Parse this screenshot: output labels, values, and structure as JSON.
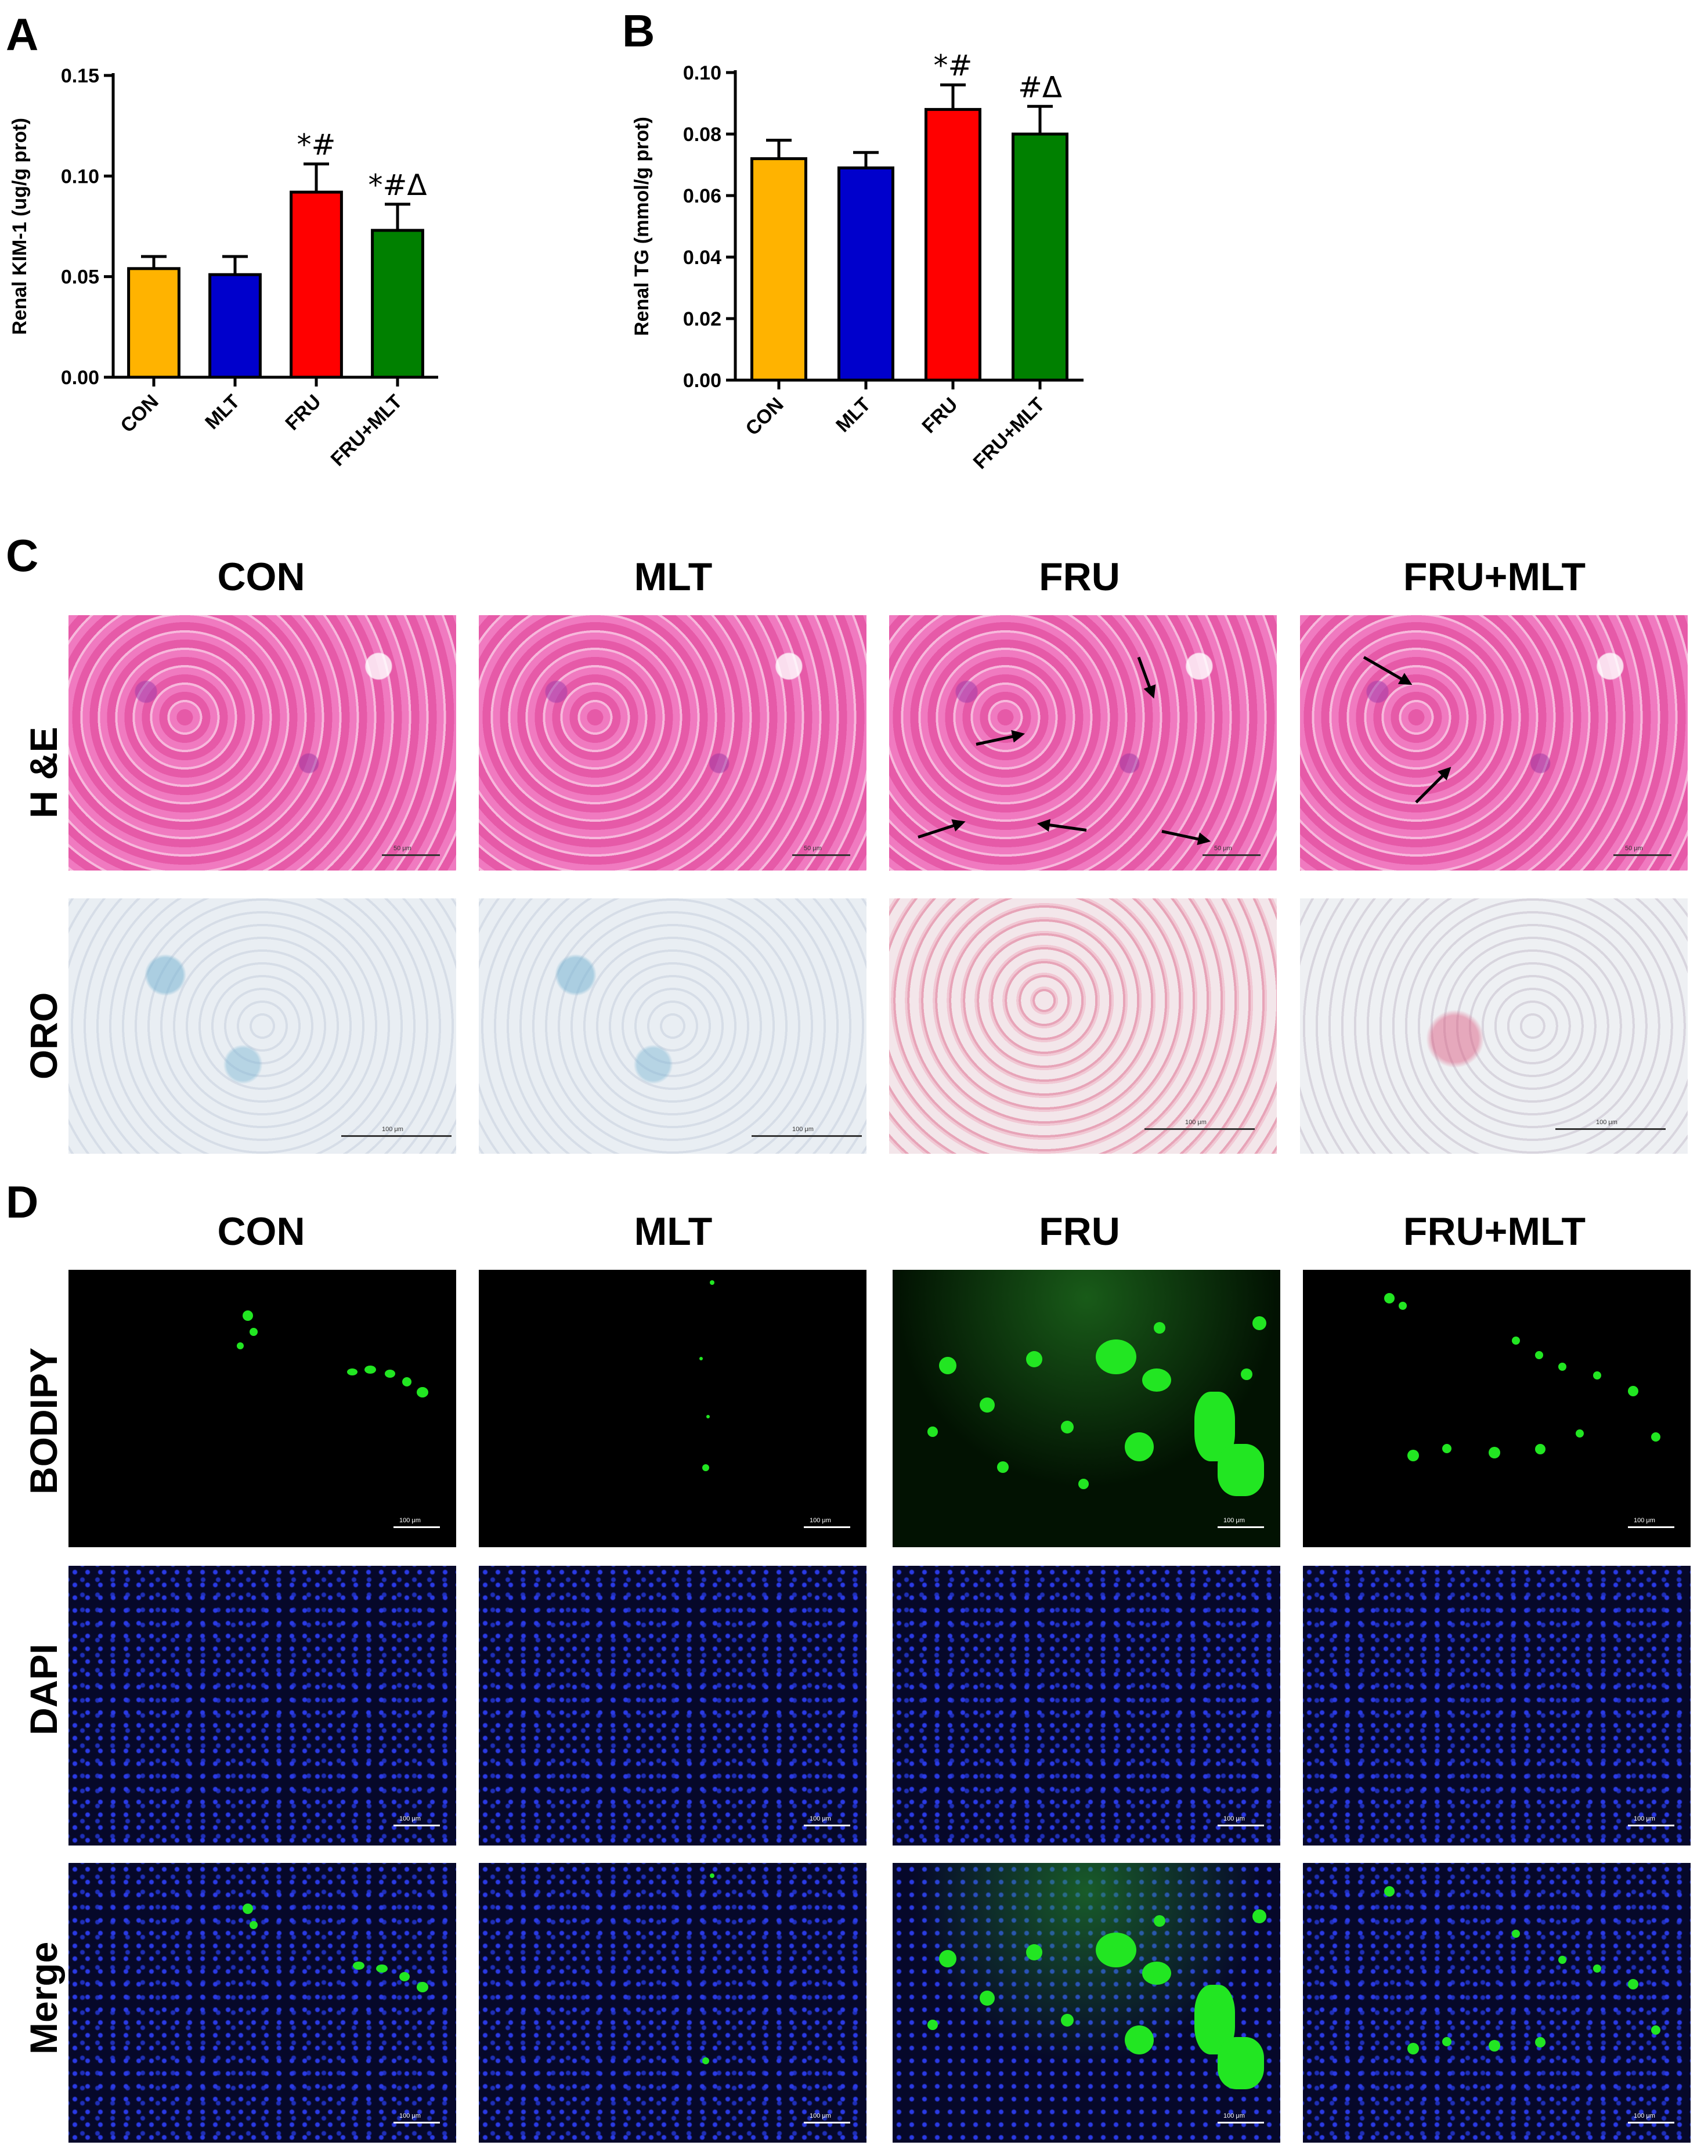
{
  "panel_letters": {
    "A": "A",
    "B": "B",
    "C": "C",
    "D": "D"
  },
  "chart_data": [
    {
      "type": "bar",
      "panel": "A",
      "categories": [
        "CON",
        "MLT",
        "FRU",
        "FRU+MLT"
      ],
      "values": [
        0.054,
        0.051,
        0.092,
        0.073
      ],
      "errors": [
        0.006,
        0.009,
        0.014,
        0.013
      ],
      "annotations": [
        "",
        "",
        "*#",
        "*#Δ"
      ],
      "colors": [
        "#FFB300",
        "#0000CC",
        "#FF0000",
        "#008000"
      ],
      "ylabel": "Renal KIM-1 (ug/g prot)",
      "xlabel": "",
      "ylim": [
        0,
        0.15
      ],
      "yticks": [
        "0.00",
        "0.05",
        "0.10",
        "0.15"
      ],
      "grid": false
    },
    {
      "type": "bar",
      "panel": "B",
      "categories": [
        "CON",
        "MLT",
        "FRU",
        "FRU+MLT"
      ],
      "values": [
        0.072,
        0.069,
        0.088,
        0.08
      ],
      "errors": [
        0.006,
        0.005,
        0.008,
        0.009
      ],
      "annotations": [
        "",
        "",
        "*#",
        "#Δ"
      ],
      "colors": [
        "#FFB300",
        "#0000CC",
        "#FF0000",
        "#008000"
      ],
      "ylabel": "Renal TG (mmol/g prot)",
      "xlabel": "",
      "ylim": [
        0,
        0.1
      ],
      "yticks": [
        "0.00",
        "0.02",
        "0.04",
        "0.06",
        "0.08",
        "0.10"
      ],
      "grid": false
    }
  ],
  "panel_c": {
    "columns": [
      "CON",
      "MLT",
      "FRU",
      "FRU+MLT"
    ],
    "rows": [
      "H &E",
      "ORO"
    ],
    "scale_label_he": "50 μm",
    "scale_label_oro": "100 μm"
  },
  "panel_d": {
    "columns": [
      "CON",
      "MLT",
      "FRU",
      "FRU+MLT"
    ],
    "rows": [
      "BODIPY",
      "DAPI",
      "Merge"
    ],
    "scale_label": "100 μm"
  }
}
